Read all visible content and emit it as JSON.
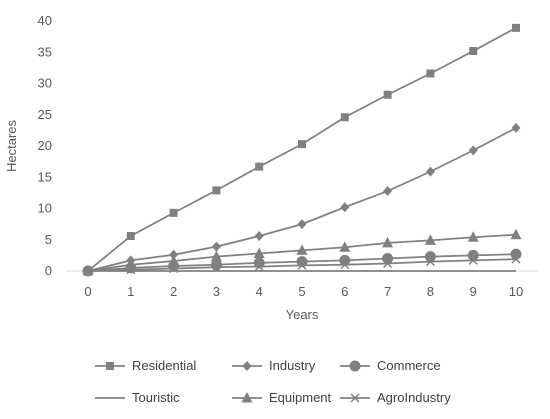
{
  "chart_data": {
    "type": "line",
    "title": "",
    "xlabel": "Years",
    "ylabel": "Hectares",
    "x": [
      0,
      1,
      2,
      3,
      4,
      5,
      6,
      7,
      8,
      9,
      10
    ],
    "x_tick_labels": [
      "0",
      "1",
      "2",
      "3",
      "4",
      "5",
      "6",
      "7",
      "8",
      "9",
      "10"
    ],
    "y_ticks": [
      0,
      5,
      10,
      15,
      20,
      25,
      30,
      35,
      40
    ],
    "y_tick_labels": [
      "0",
      "5",
      "10",
      "15",
      "20",
      "25",
      "30",
      "35",
      "40"
    ],
    "ylim": [
      0,
      40
    ],
    "grid": false,
    "legend_position": "bottom",
    "line_color": "#808080",
    "series": [
      {
        "name": "Residential",
        "marker": "square",
        "values": [
          0,
          5.6,
          9.3,
          12.9,
          16.7,
          20.3,
          24.6,
          28.2,
          31.6,
          35.2,
          38.9
        ]
      },
      {
        "name": "Industry",
        "marker": "diamond",
        "values": [
          0,
          1.7,
          2.6,
          3.9,
          5.6,
          7.5,
          10.2,
          12.8,
          15.9,
          19.3,
          22.9
        ]
      },
      {
        "name": "Commerce",
        "marker": "circle",
        "values": [
          0,
          0.5,
          0.8,
          1.0,
          1.3,
          1.5,
          1.7,
          2.0,
          2.3,
          2.5,
          2.7
        ]
      },
      {
        "name": "Touristic",
        "marker": "none",
        "values": [
          0,
          0,
          0,
          0,
          0,
          0,
          0,
          0,
          0,
          0,
          0
        ]
      },
      {
        "name": "Equipment",
        "marker": "triangle",
        "values": [
          0,
          1.0,
          1.6,
          2.3,
          2.8,
          3.3,
          3.8,
          4.5,
          4.9,
          5.4,
          5.8
        ]
      },
      {
        "name": "AgroIndustry",
        "marker": "x",
        "values": [
          0,
          0.2,
          0.4,
          0.6,
          0.7,
          0.9,
          1.0,
          1.2,
          1.5,
          1.7,
          1.9
        ]
      }
    ]
  }
}
